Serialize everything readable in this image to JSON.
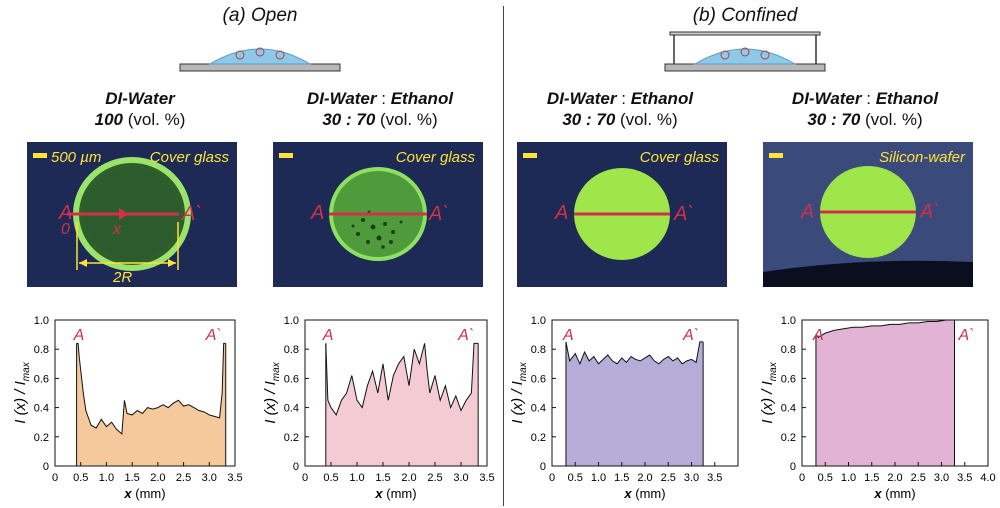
{
  "panels": {
    "open": {
      "letter": "a",
      "label": "Open"
    },
    "confined": {
      "letter": "b",
      "label": "Confined"
    }
  },
  "captions": [
    {
      "line1": "DI-Water",
      "line2_value": "100",
      "line2_unit": "(vol. %)"
    },
    {
      "line1a": "DI-Water",
      "sep": ":",
      "line1b": "Ethanol",
      "line2_value": "30 : 70",
      "line2_unit": "(vol. %)"
    },
    {
      "line1a": "DI-Water",
      "sep": ":",
      "line1b": "Ethanol",
      "line2_value": "30 : 70",
      "line2_unit": "(vol. %)"
    },
    {
      "line1a": "DI-Water",
      "sep": ":",
      "line1b": "Ethanol",
      "line2_value": "30 : 70",
      "line2_unit": "(vol. %)"
    }
  ],
  "photos": [
    {
      "substrate": "Cover glass",
      "scale": "500 µm",
      "a": "A",
      "a_prime": "A`",
      "origin": "0",
      "xlabel": "x",
      "diameter": "2R"
    },
    {
      "substrate": "Cover glass",
      "a": "A",
      "a_prime": "A`"
    },
    {
      "substrate": "Cover glass",
      "a": "A",
      "a_prime": "A`"
    },
    {
      "substrate": "Silicon-wafer",
      "a": "A",
      "a_prime": "A`"
    }
  ],
  "colors": {
    "open_fill": "#f5c99c",
    "open2_fill": "#f4cbd3",
    "confined_fill": "#b6acd8",
    "confined2_fill": "#e3b3d5",
    "marker": "#d0304a"
  },
  "chart_data": [
    {
      "type": "area",
      "xlabel": "x (mm)",
      "ylabel": "I (x) / I_max",
      "ylabel_main": "I (x) / I",
      "ylabel_sub": "max",
      "xlim": [
        0,
        3.5
      ],
      "ylim": [
        0,
        1.0
      ],
      "xticks": [
        "0",
        "0.5",
        "1.0",
        "1.5",
        "2.0",
        "2.5",
        "3.0",
        "3.5"
      ],
      "yticks": [
        "0",
        "0.2",
        "0.4",
        "0.6",
        "0.8",
        "1.0"
      ],
      "annotations": [
        "A",
        "A`"
      ],
      "fill": "#f5c99c",
      "x": [
        0.42,
        0.45,
        0.47,
        0.55,
        0.6,
        0.7,
        0.8,
        0.9,
        1.0,
        1.1,
        1.2,
        1.3,
        1.35,
        1.4,
        1.5,
        1.6,
        1.7,
        1.8,
        1.9,
        2.0,
        2.1,
        2.2,
        2.3,
        2.4,
        2.5,
        2.6,
        2.7,
        2.8,
        2.9,
        3.0,
        3.1,
        3.2,
        3.25,
        3.28,
        3.32
      ],
      "y": [
        0.84,
        0.84,
        0.75,
        0.5,
        0.38,
        0.28,
        0.26,
        0.32,
        0.27,
        0.3,
        0.25,
        0.22,
        0.45,
        0.36,
        0.35,
        0.38,
        0.36,
        0.4,
        0.39,
        0.4,
        0.42,
        0.4,
        0.43,
        0.45,
        0.41,
        0.42,
        0.4,
        0.38,
        0.37,
        0.35,
        0.34,
        0.33,
        0.5,
        0.84,
        0.84
      ]
    },
    {
      "type": "area",
      "xlabel": "x (mm)",
      "ylabel": "I (x) / I_max",
      "ylabel_main": "I (x) / I",
      "ylabel_sub": "max",
      "xlim": [
        0,
        3.5
      ],
      "ylim": [
        0,
        1.0
      ],
      "xticks": [
        "0",
        "0.5",
        "1.0",
        "1.5",
        "2.0",
        "2.5",
        "3.0",
        "3.5"
      ],
      "yticks": [
        "0",
        "0.2",
        "0.4",
        "0.6",
        "0.8",
        "1.0"
      ],
      "annotations": [
        "A",
        "A`"
      ],
      "fill": "#f4cbd3",
      "x": [
        0.4,
        0.44,
        0.5,
        0.6,
        0.7,
        0.8,
        0.9,
        1.0,
        1.1,
        1.2,
        1.3,
        1.4,
        1.5,
        1.6,
        1.7,
        1.8,
        1.9,
        2.0,
        2.1,
        2.2,
        2.3,
        2.35,
        2.4,
        2.5,
        2.6,
        2.7,
        2.8,
        2.9,
        3.0,
        3.1,
        3.2,
        3.25,
        3.33
      ],
      "y": [
        0.84,
        0.45,
        0.4,
        0.35,
        0.45,
        0.5,
        0.62,
        0.45,
        0.4,
        0.55,
        0.65,
        0.5,
        0.7,
        0.45,
        0.62,
        0.7,
        0.75,
        0.55,
        0.8,
        0.7,
        0.84,
        0.65,
        0.5,
        0.62,
        0.45,
        0.55,
        0.4,
        0.48,
        0.38,
        0.45,
        0.5,
        0.84,
        0.84
      ]
    },
    {
      "type": "area",
      "xlabel": "x (mm)",
      "ylabel": "I (x) / I_max",
      "ylabel_main": "I (x) / I",
      "ylabel_sub": "max",
      "xlim": [
        0,
        4.0
      ],
      "ylim": [
        0,
        1.0
      ],
      "xticks": [
        "0",
        "0.5",
        "1.0",
        "1.5",
        "2.0",
        "2.5",
        "3.0",
        "3.5"
      ],
      "yticks": [
        "0",
        "0.2",
        "0.4",
        "0.6",
        "0.8",
        "1.0"
      ],
      "annotations": [
        "A",
        "A`"
      ],
      "fill": "#b6acd8",
      "x": [
        0.3,
        0.38,
        0.5,
        0.6,
        0.7,
        0.8,
        0.9,
        1.0,
        1.1,
        1.2,
        1.3,
        1.4,
        1.5,
        1.6,
        1.7,
        1.8,
        1.9,
        2.0,
        2.1,
        2.2,
        2.3,
        2.4,
        2.5,
        2.6,
        2.7,
        2.8,
        2.9,
        3.0,
        3.1,
        3.18,
        3.25
      ],
      "y": [
        0.85,
        0.72,
        0.77,
        0.7,
        0.78,
        0.72,
        0.75,
        0.7,
        0.73,
        0.76,
        0.72,
        0.7,
        0.74,
        0.71,
        0.75,
        0.73,
        0.72,
        0.74,
        0.76,
        0.72,
        0.7,
        0.73,
        0.75,
        0.72,
        0.74,
        0.7,
        0.72,
        0.73,
        0.71,
        0.85,
        0.85
      ]
    },
    {
      "type": "area",
      "xlabel": "x (mm)",
      "ylabel": "I (x) / I_max",
      "ylabel_main": "I (x) / I",
      "ylabel_sub": "max",
      "xlim": [
        0,
        4.0
      ],
      "ylim": [
        0,
        1.0
      ],
      "xticks": [
        "0",
        "0.5",
        "1.0",
        "1.5",
        "2.0",
        "2.5",
        "3.0",
        "3.5",
        "4.0"
      ],
      "yticks": [
        "0",
        "0.2",
        "0.4",
        "0.6",
        "0.8",
        "1.0"
      ],
      "annotations": [
        "A",
        "A`"
      ],
      "fill": "#e3b3d5",
      "x": [
        0.3,
        0.35,
        0.5,
        0.7,
        0.9,
        1.1,
        1.3,
        1.5,
        1.7,
        1.9,
        2.1,
        2.3,
        2.5,
        2.7,
        2.9,
        3.1,
        3.2,
        3.28
      ],
      "y": [
        0.9,
        0.88,
        0.91,
        0.93,
        0.94,
        0.95,
        0.95,
        0.96,
        0.96,
        0.97,
        0.97,
        0.98,
        0.98,
        0.99,
        0.99,
        1.0,
        1.0,
        1.0
      ]
    }
  ]
}
